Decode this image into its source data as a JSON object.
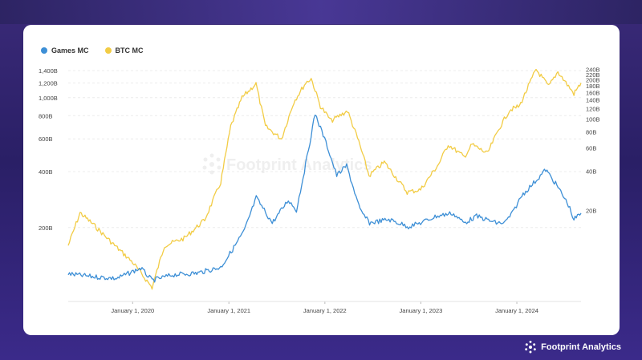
{
  "brand": {
    "name": "Footprint Analytics",
    "watermark": "Footprint Analytics"
  },
  "colors": {
    "games": "#3d8fd6",
    "btc": "#f2cc45"
  },
  "legend": [
    {
      "label": "Games MC",
      "color": "#3d8fd6"
    },
    {
      "label": "BTC MC",
      "color": "#f2cc45"
    }
  ],
  "chart_data": {
    "type": "line",
    "title": "",
    "xlabel": "",
    "x_ticks": [
      "January 1, 2020",
      "January 1, 2021",
      "January 1, 2022",
      "January 1, 2023",
      "January 1, 2024"
    ],
    "left_axis": {
      "scale": "log",
      "ticks": [
        "200B",
        "400B",
        "600B",
        "800B",
        "1,000B",
        "1,200B",
        "1,400B"
      ]
    },
    "right_axis": {
      "scale": "log",
      "ticks": [
        "20B",
        "40B",
        "60B",
        "80B",
        "100B",
        "120B",
        "140B",
        "160B",
        "180B",
        "200B",
        "220B",
        "240B"
      ]
    },
    "grid": "horizontal dashed",
    "legend_position": "top-left",
    "series": [
      {
        "name": "BTC MC",
        "axis": "left",
        "x": [
          "2019-05-01",
          "2019-06-15",
          "2019-08-01",
          "2019-10-15",
          "2020-01-01",
          "2020-03-15",
          "2020-05-01",
          "2020-07-15",
          "2020-10-01",
          "2020-12-01",
          "2021-01-08",
          "2021-02-20",
          "2021-04-14",
          "2021-05-20",
          "2021-07-20",
          "2021-09-05",
          "2021-10-20",
          "2021-11-10",
          "2021-12-15",
          "2022-01-25",
          "2022-03-28",
          "2022-05-10",
          "2022-06-18",
          "2022-08-15",
          "2022-11-10",
          "2022-12-31",
          "2023-03-10",
          "2023-04-15",
          "2023-06-15",
          "2023-07-15",
          "2023-09-11",
          "2023-10-25",
          "2023-12-05",
          "2024-01-11",
          "2024-03-14",
          "2024-05-01",
          "2024-06-05",
          "2024-08-05",
          "2024-09-01"
        ],
        "values": [
          160,
          240,
          210,
          165,
          130,
          95,
          160,
          175,
          220,
          350,
          700,
          1000,
          1190,
          700,
          600,
          950,
          1200,
          1270,
          900,
          750,
          850,
          580,
          380,
          450,
          310,
          320,
          440,
          560,
          480,
          560,
          500,
          680,
          860,
          900,
          1420,
          1150,
          1380,
          1050,
          1200
        ]
      },
      {
        "name": "Games MC",
        "axis": "right",
        "x": [
          "2019-05-01",
          "2019-08-01",
          "2019-11-01",
          "2020-02-01",
          "2020-03-15",
          "2020-06-01",
          "2020-09-01",
          "2020-12-01",
          "2021-01-15",
          "2021-03-01",
          "2021-04-15",
          "2021-06-15",
          "2021-08-15",
          "2021-09-15",
          "2021-10-20",
          "2021-11-25",
          "2022-01-10",
          "2022-02-15",
          "2022-03-25",
          "2022-05-15",
          "2022-06-20",
          "2022-09-01",
          "2022-11-15",
          "2022-12-31",
          "2023-03-01",
          "2023-05-01",
          "2023-06-15",
          "2023-08-01",
          "2023-10-15",
          "2023-11-15",
          "2023-12-15",
          "2024-01-20",
          "2024-03-15",
          "2024-04-20",
          "2024-06-01",
          "2024-07-15",
          "2024-08-05",
          "2024-09-01"
        ],
        "values": [
          6.5,
          6.2,
          6.0,
          7.2,
          5.8,
          6.4,
          6.6,
          7.3,
          10,
          14,
          25,
          16,
          24,
          20,
          45,
          110,
          62,
          37,
          44,
          20,
          16,
          17,
          15,
          16,
          18,
          19,
          16,
          18,
          16,
          16,
          19,
          26,
          34,
          41,
          31,
          22,
          17,
          19
        ]
      }
    ]
  }
}
